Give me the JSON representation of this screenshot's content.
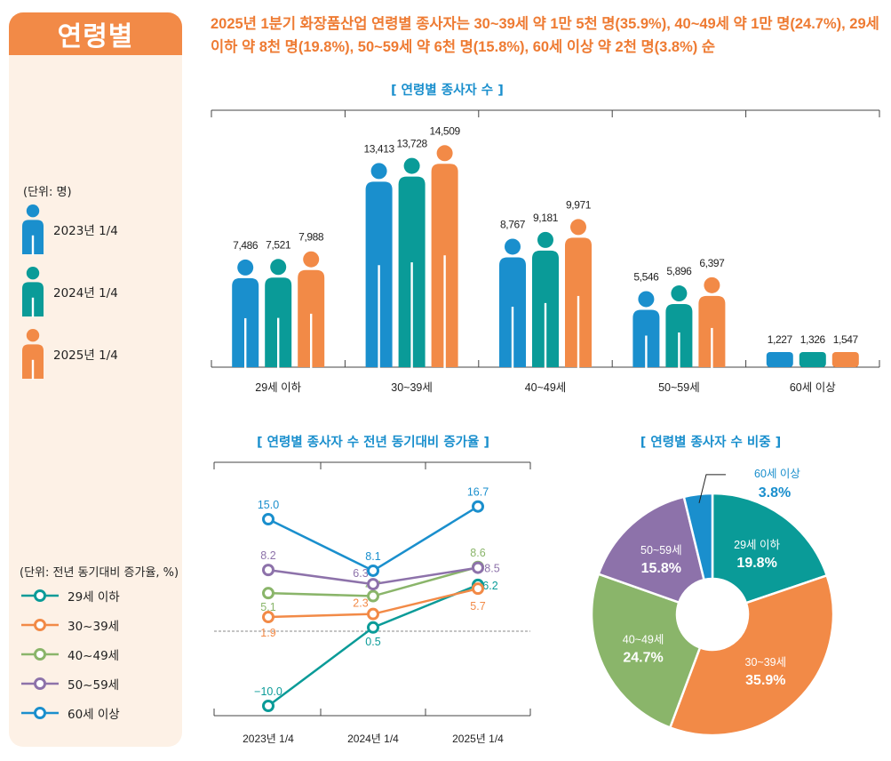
{
  "section_title": "연령별",
  "headline": "2025년 1분기 화장품산업 연령별 종사자는 30~39세 약 1만 5천 명(35.9%), 40~49세 약 1만 명(24.7%), 29세 이하 약 8천 명(19.8%), 50~59세 약 6천 명(15.8%), 60세 이상 약 2천 명(3.8%) 순",
  "colors": {
    "y2023": "#1a8fcd",
    "y2024": "#0a9b98",
    "y2025": "#f28a47",
    "g29": "#0a9b98",
    "g30": "#f28a47",
    "g40": "#8ab56a",
    "g50": "#8d72aa",
    "g60": "#1a8fcd"
  },
  "legend_top": {
    "unit": "(단위: 명)",
    "items": [
      "2023년 1/4",
      "2024년 1/4",
      "2025년 1/4"
    ]
  },
  "legend_bottom": {
    "unit": "(단위: 전년 동기대비 증가율, %)",
    "items": [
      "29세 이하",
      "30~39세",
      "40~49세",
      "50~59세",
      "60세 이상"
    ]
  },
  "chart_data": [
    {
      "type": "bar",
      "title": "[ 연령별 종사자 수 ]",
      "categories": [
        "29세 이하",
        "30~39세",
        "40~49세",
        "50~59세",
        "60세 이상"
      ],
      "series": [
        {
          "name": "2023년 1/4",
          "values": [
            7486,
            13413,
            8767,
            5546,
            1227
          ]
        },
        {
          "name": "2024년 1/4",
          "values": [
            7521,
            13728,
            9181,
            5896,
            1326
          ]
        },
        {
          "name": "2025년 1/4",
          "values": [
            7988,
            14509,
            9971,
            6397,
            1547
          ]
        }
      ],
      "value_labels": [
        [
          "7,486",
          "13,413",
          "8,767",
          "5,546",
          "1,227"
        ],
        [
          "7,521",
          "13,728",
          "9,181",
          "5,896",
          "1,326"
        ],
        [
          "7,988",
          "14,509",
          "9,971",
          "6,397",
          "1,547"
        ]
      ],
      "ylim": [
        0,
        16000
      ]
    },
    {
      "type": "line",
      "title": "[ 연령별 종사자 수 전년 동기대비 증가율 ]",
      "categories": [
        "2023년 1/4",
        "2024년 1/4",
        "2025년 1/4"
      ],
      "series": [
        {
          "name": "29세 이하",
          "values": [
            -10.0,
            0.5,
            6.2
          ],
          "labels": [
            "−10.0",
            "0.5",
            "6.2"
          ]
        },
        {
          "name": "30~39세",
          "values": [
            1.9,
            2.3,
            5.7
          ],
          "labels": [
            "1.9",
            "2.3",
            "5.7"
          ]
        },
        {
          "name": "40~49세",
          "values": [
            5.1,
            4.7,
            8.6
          ],
          "labels": [
            "5.1",
            "4.7",
            "8.6"
          ]
        },
        {
          "name": "50~59세",
          "values": [
            8.2,
            6.3,
            8.5
          ],
          "labels": [
            "8.2",
            "6.3",
            "8.5"
          ]
        },
        {
          "name": "60세 이상",
          "values": [
            15.0,
            8.1,
            16.7
          ],
          "labels": [
            "15.0",
            "8.1",
            "16.7"
          ]
        }
      ],
      "ylim": [
        -12,
        20
      ]
    },
    {
      "type": "pie",
      "title": "[ 연령별 종사자 수 비중 ]",
      "slices": [
        {
          "label": "29세 이하",
          "value": 19.8,
          "pct": "19.8%"
        },
        {
          "label": "30~39세",
          "value": 35.9,
          "pct": "35.9%"
        },
        {
          "label": "40~49세",
          "value": 24.7,
          "pct": "24.7%"
        },
        {
          "label": "50~59세",
          "value": 15.8,
          "pct": "15.8%"
        },
        {
          "label": "60세 이상",
          "value": 3.8,
          "pct": "3.8%"
        }
      ]
    }
  ]
}
